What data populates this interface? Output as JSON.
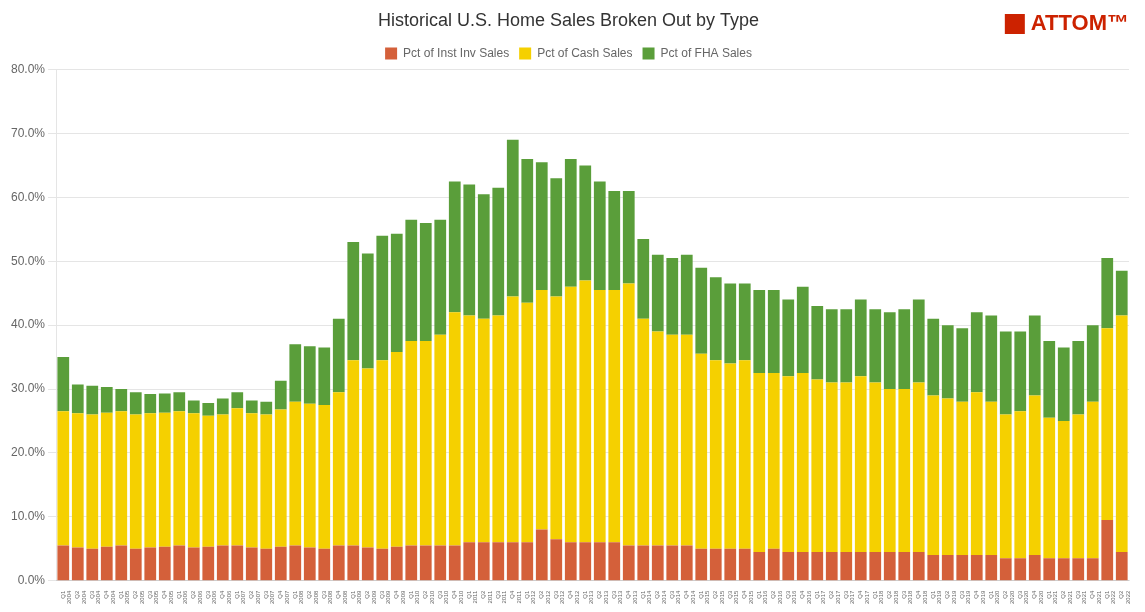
{
  "chart_data": {
    "type": "bar",
    "title": "Historical U.S. Home Sales Broken Out by Type",
    "categories": [
      "Q1\n2004",
      "Q2\n2004",
      "Q3\n2004",
      "Q4\n2004",
      "Q1\n2005",
      "Q2\n2005",
      "Q3\n2005",
      "Q4\n2005",
      "Q1\n2006",
      "Q2\n2006",
      "Q3\n2006",
      "Q4\n2006",
      "Q1\n2007",
      "Q2\n2007",
      "Q3\n2007",
      "Q4\n2007",
      "Q1\n2008",
      "Q2\n2008",
      "Q3\n2008",
      "Q4\n2008",
      "Q1\n2009",
      "Q2\n2009",
      "Q3\n2009",
      "Q4\n2009",
      "Q1\n2010",
      "Q2\n2010",
      "Q3\n2010",
      "Q4\n2010",
      "Q1\n2011",
      "Q2\n2011",
      "Q3\n2011",
      "Q4\n2011",
      "Q1\n2012",
      "Q2\n2012",
      "Q3\n2012",
      "Q4\n2012",
      "Q1\n2013",
      "Q2\n2013",
      "Q3\n2013",
      "Q4\n2013",
      "Q1\n2014",
      "Q2\n2014",
      "Q3\n2014",
      "Q4\n2014",
      "Q1\n2015",
      "Q2\n2015",
      "Q3\n2015",
      "Q4\n2015",
      "Q1\n2016",
      "Q2\n2016",
      "Q3\n2016",
      "Q4\n2016",
      "Q1\n2017",
      "Q2\n2017",
      "Q3\n2017",
      "Q4\n2017",
      "Q1\n2018",
      "Q2\n2018",
      "Q3\n2018",
      "Q4\n2018",
      "Q1\n2019",
      "Q2\n2019",
      "Q3\n2019",
      "Q4\n2019",
      "Q1\n2020",
      "Q2\n2020",
      "Q3\n2020",
      "Q4\n2020",
      "Q1\n2021",
      "Q2\n2021",
      "Q3\n2021",
      "Q4\n2021",
      "Q1\n2022",
      "Q2\n2022"
    ],
    "series": [
      {
        "name": "Pct of Inst Inv Sales",
        "color": "#D4603A",
        "values": [
          5.5,
          5.2,
          5.0,
          5.3,
          5.5,
          5.0,
          5.2,
          5.3,
          5.5,
          5.2,
          5.3,
          5.5,
          5.5,
          5.2,
          5.0,
          5.3,
          5.5,
          5.2,
          5.0,
          5.5,
          5.5,
          5.2,
          5.0,
          5.3,
          5.5,
          5.5,
          5.5,
          5.5,
          6.0,
          6.0,
          6.0,
          6.0,
          6.0,
          8.0,
          6.5,
          6.0,
          6.0,
          6.0,
          6.0,
          5.5,
          5.5,
          5.5,
          5.5,
          5.5,
          5.0,
          5.0,
          5.0,
          5.0,
          4.5,
          5.0,
          4.5,
          4.5,
          4.5,
          4.5,
          4.5,
          4.5,
          4.5,
          4.5,
          4.5,
          4.5,
          4.0,
          4.0,
          4.0,
          4.0,
          4.0,
          3.5,
          3.5,
          4.0,
          3.5,
          3.5,
          3.5,
          3.5,
          9.5,
          4.5
        ]
      },
      {
        "name": "Pct of Cash Sales",
        "color": "#F5D000",
        "values": [
          21.0,
          21.0,
          21.0,
          21.0,
          21.0,
          21.0,
          21.0,
          21.0,
          21.0,
          21.0,
          20.5,
          20.5,
          21.5,
          21.0,
          21.0,
          21.5,
          22.5,
          22.5,
          22.5,
          24.0,
          29.0,
          28.0,
          29.5,
          30.5,
          32.0,
          32.0,
          33.0,
          36.5,
          35.5,
          35.0,
          35.5,
          38.5,
          37.5,
          37.5,
          38.0,
          40.0,
          41.0,
          39.5,
          39.5,
          41.0,
          35.5,
          33.5,
          33.0,
          33.0,
          30.5,
          29.5,
          29.0,
          29.5,
          28.0,
          27.5,
          27.5,
          28.0,
          27.0,
          26.5,
          26.5,
          27.5,
          26.5,
          25.5,
          25.5,
          26.5,
          25.0,
          24.5,
          24.0,
          25.5,
          24.0,
          22.5,
          23.0,
          25.0,
          22.0,
          21.5,
          22.5,
          24.5,
          30.0,
          37.0
        ]
      },
      {
        "name": "Pct of FHA Sales",
        "color": "#5A9E3A",
        "values": [
          8.5,
          4.5,
          4.5,
          4.0,
          3.5,
          3.5,
          3.0,
          3.0,
          3.0,
          2.0,
          2.0,
          2.5,
          2.5,
          2.0,
          2.0,
          4.5,
          9.0,
          9.0,
          9.0,
          11.5,
          18.5,
          18.0,
          19.5,
          18.5,
          19.0,
          18.5,
          18.0,
          20.5,
          20.5,
          19.5,
          20.0,
          24.5,
          22.5,
          20.0,
          18.5,
          20.0,
          18.0,
          17.0,
          15.5,
          14.5,
          12.5,
          12.0,
          12.0,
          12.5,
          13.5,
          13.0,
          12.5,
          12.0,
          13.0,
          13.0,
          12.0,
          13.5,
          11.5,
          11.5,
          11.5,
          12.0,
          11.5,
          12.0,
          12.5,
          13.0,
          12.0,
          11.5,
          11.5,
          12.5,
          13.5,
          13.0,
          12.5,
          12.5,
          12.0,
          11.5,
          11.5,
          12.0,
          11.0,
          7.0
        ]
      }
    ],
    "stacked": true,
    "ylim": [
      0,
      80
    ],
    "yticks": [
      {
        "value": 0,
        "label": "0.0%"
      },
      {
        "value": 10,
        "label": "10.0%"
      },
      {
        "value": 20,
        "label": "20.0%"
      },
      {
        "value": 30,
        "label": "30.0%"
      },
      {
        "value": 40,
        "label": "40.0%"
      },
      {
        "value": 50,
        "label": "50.0%"
      },
      {
        "value": 60,
        "label": "60.0%"
      },
      {
        "value": 70,
        "label": "70.0%"
      },
      {
        "value": 80,
        "label": "80.0%"
      }
    ],
    "grid": true,
    "legend": "top",
    "annotations": [
      {
        "text": "ATTOM™",
        "color": "#CC2200"
      }
    ]
  }
}
